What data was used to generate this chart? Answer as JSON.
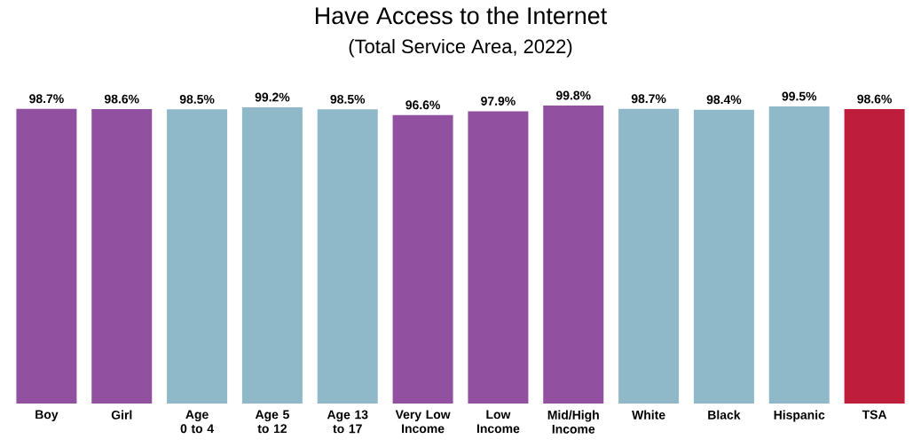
{
  "chart_data": {
    "type": "bar",
    "title": "Have Access to the Internet",
    "subtitle": "(Total Service Area, 2022)",
    "categories": [
      "Boy",
      "Girl",
      "Age 0 to 4",
      "Age 5 to 12",
      "Age 13 to 17",
      "Very Low Income",
      "Low Income",
      "Mid/High Income",
      "White",
      "Black",
      "Hispanic",
      "TSA"
    ],
    "values": [
      98.7,
      98.6,
      98.5,
      99.2,
      98.5,
      96.6,
      97.9,
      99.8,
      98.7,
      98.4,
      99.5,
      98.6
    ],
    "value_labels": [
      "98.7%",
      "98.6%",
      "98.5%",
      "99.2%",
      "98.5%",
      "96.6%",
      "97.9%",
      "99.8%",
      "98.7%",
      "98.4%",
      "99.5%",
      "98.6%"
    ],
    "colors": [
      "#9150a0",
      "#9150a0",
      "#8fb8c8",
      "#8fb8c8",
      "#8fb8c8",
      "#9150a0",
      "#9150a0",
      "#9150a0",
      "#8fb8c8",
      "#8fb8c8",
      "#8fb8c8",
      "#be1e3c"
    ]
  }
}
